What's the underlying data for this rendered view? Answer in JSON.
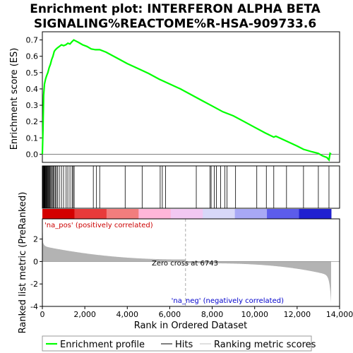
{
  "chart_data": {
    "type": "line",
    "title_line1": "Enrichment plot: INTERFERON ALPHA BETA",
    "title_line2": "SIGNALING%REACTOME%R-HSA-909733.6",
    "xlabel": "Rank in Ordered Dataset",
    "ylabel_top": "Enrichment score (ES)",
    "ylabel_bottom": "Ranked list metric (PreRanked)",
    "xlim": [
      0,
      14000
    ],
    "ylim_es": [
      -0.05,
      0.75
    ],
    "ylim_metric": [
      -4,
      3.8
    ],
    "x_ticks": [
      0,
      2000,
      4000,
      6000,
      8000,
      10000,
      12000,
      14000
    ],
    "x_tick_labels": [
      "0",
      "2,000",
      "4,000",
      "6,000",
      "8,000",
      "10,000",
      "12,000",
      "14,000"
    ],
    "es_ticks": [
      0.0,
      0.1,
      0.2,
      0.3,
      0.4,
      0.5,
      0.6,
      0.7
    ],
    "es_tick_labels": [
      "0.0",
      "0.1",
      "0.2",
      "0.3",
      "0.4",
      "0.5",
      "0.6",
      "0.7"
    ],
    "metric_ticks": [
      2,
      0,
      -2,
      -4
    ],
    "metric_tick_labels": [
      "2",
      "0",
      "-2",
      "-4"
    ],
    "zero_cross_label": "Zero cross at 6743",
    "zero_cross": 6743,
    "pos_label": "'na_pos' (positively correlated)",
    "neg_label": "'na_neg' (negatively correlated)",
    "n_genes": 13600,
    "es_curve": {
      "x": [
        0,
        30,
        60,
        100,
        150,
        200,
        260,
        320,
        380,
        440,
        500,
        560,
        620,
        700,
        800,
        900,
        1000,
        1100,
        1200,
        1300,
        1400,
        1480,
        1550,
        1700,
        1900,
        2100,
        2300,
        2500,
        2700,
        3000,
        3500,
        4000,
        4500,
        5000,
        5500,
        6000,
        6500,
        7000,
        7500,
        8000,
        8500,
        9000,
        9500,
        10000,
        10500,
        10900,
        11000,
        11500,
        12000,
        12300,
        12700,
        13000,
        13200,
        13400,
        13500,
        13550,
        13600
      ],
      "y": [
        0.0,
        0.15,
        0.36,
        0.43,
        0.46,
        0.48,
        0.5,
        0.53,
        0.55,
        0.58,
        0.6,
        0.63,
        0.64,
        0.65,
        0.66,
        0.67,
        0.665,
        0.67,
        0.68,
        0.675,
        0.69,
        0.7,
        0.695,
        0.685,
        0.67,
        0.66,
        0.645,
        0.64,
        0.64,
        0.625,
        0.59,
        0.555,
        0.525,
        0.495,
        0.46,
        0.43,
        0.4,
        0.365,
        0.33,
        0.295,
        0.26,
        0.235,
        0.2,
        0.165,
        0.13,
        0.105,
        0.11,
        0.08,
        0.05,
        0.03,
        0.015,
        0.005,
        -0.01,
        -0.02,
        -0.035,
        0.005,
        0.0
      ]
    },
    "hits": [
      10,
      30,
      50,
      70,
      90,
      110,
      130,
      150,
      175,
      200,
      230,
      260,
      290,
      320,
      350,
      390,
      430,
      470,
      520,
      560,
      610,
      660,
      720,
      800,
      900,
      1000,
      1120,
      1200,
      1300,
      1400,
      1450,
      1500,
      2400,
      2550,
      2700,
      3900,
      4700,
      5550,
      5650,
      5800,
      7250,
      7900,
      7950,
      8100,
      8200,
      8400,
      8600,
      8700,
      9100,
      10100,
      10550,
      10900,
      11500,
      12300,
      13000,
      13500
    ]
  },
  "legend": {
    "enrichment_label": "Enrichment profile",
    "hits_label": "Hits",
    "metric_label": "Ranking metric scores"
  },
  "colors": {
    "es_line": "#00ff00",
    "pos_text": "#cc0000",
    "neg_text": "#0000cc",
    "metric_fill": "#b3b3b3",
    "zero_line": "#808080",
    "bar_gradient": [
      "#d40000",
      "#e83a3a",
      "#f27d7d",
      "#ffb6d9",
      "#f2c8f2",
      "#d8d8f8",
      "#a8a8f5",
      "#5c5ceb",
      "#2020d0"
    ]
  }
}
